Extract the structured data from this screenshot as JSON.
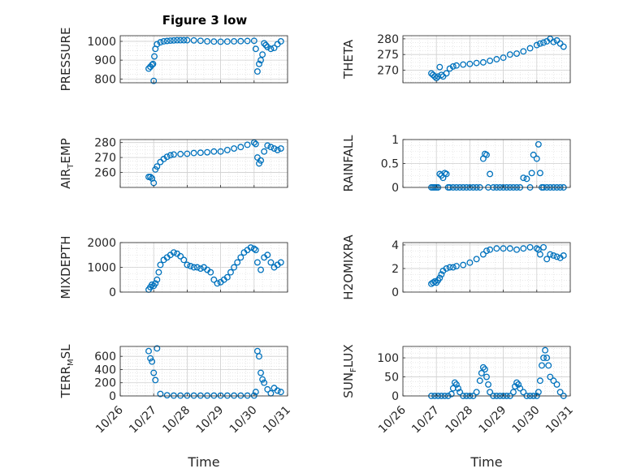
{
  "figure": {
    "title": "Figure 3 low",
    "marker_color": "#0072BD",
    "x_tick_labels": [
      "10/26",
      "10/27",
      "10/28",
      "10/29",
      "10/30",
      "10/31"
    ],
    "x_label": "Time"
  },
  "chart_data": [
    {
      "type": "scatter",
      "ylabel": "PRESSURE",
      "ylim": [
        780,
        1030
      ],
      "yticks": [
        800,
        900,
        1000
      ],
      "x_range_days": [
        26,
        31
      ],
      "grid": true,
      "x": [
        26.85,
        26.9,
        26.95,
        26.98,
        27.0,
        27.02,
        27.05,
        27.1,
        27.2,
        27.3,
        27.4,
        27.5,
        27.6,
        27.7,
        27.8,
        27.9,
        28.0,
        28.2,
        28.4,
        28.6,
        28.8,
        29.0,
        29.2,
        29.4,
        29.6,
        29.8,
        30.0,
        30.05,
        30.1,
        30.15,
        30.2,
        30.25,
        30.3,
        30.35,
        30.4,
        30.5,
        30.6,
        30.7,
        30.8
      ],
      "y": [
        855,
        865,
        875,
        880,
        790,
        920,
        960,
        985,
        995,
        1000,
        1002,
        1004,
        1005,
        1006,
        1006,
        1006,
        1006,
        1005,
        1003,
        1000,
        999,
        998,
        999,
        1000,
        1001,
        1002,
        1003,
        960,
        840,
        880,
        900,
        930,
        990,
        980,
        970,
        960,
        965,
        985,
        1000
      ]
    },
    {
      "type": "scatter",
      "ylabel": "THETA",
      "ylim": [
        266,
        281
      ],
      "yticks": [
        270,
        275,
        280
      ],
      "x_range_days": [
        26,
        31
      ],
      "grid": true,
      "x": [
        26.85,
        26.9,
        26.95,
        27.0,
        27.05,
        27.1,
        27.15,
        27.2,
        27.3,
        27.4,
        27.5,
        27.6,
        27.8,
        28.0,
        28.2,
        28.4,
        28.6,
        28.8,
        29.0,
        29.2,
        29.4,
        29.6,
        29.8,
        30.0,
        30.1,
        30.2,
        30.3,
        30.4,
        30.5,
        30.6,
        30.7,
        30.8
      ],
      "y": [
        269,
        268.5,
        268,
        267.5,
        268,
        271,
        268.5,
        268,
        269,
        270.5,
        271.2,
        271.5,
        271.8,
        272,
        272.3,
        272.5,
        273,
        273.5,
        274,
        275,
        275.3,
        276,
        277,
        278,
        278.5,
        278.8,
        279.2,
        280,
        279,
        279.5,
        278.5,
        277.5
      ]
    },
    {
      "type": "scatter",
      "ylabel": "AIR_TEMP",
      "ylim": [
        250,
        282
      ],
      "yticks": [
        260,
        270,
        280
      ],
      "x_range_days": [
        26,
        31
      ],
      "grid": true,
      "x": [
        26.85,
        26.9,
        26.95,
        27.0,
        27.05,
        27.1,
        27.2,
        27.3,
        27.4,
        27.5,
        27.6,
        27.8,
        28.0,
        28.2,
        28.4,
        28.6,
        28.8,
        29.0,
        29.2,
        29.4,
        29.6,
        29.8,
        30.0,
        30.05,
        30.1,
        30.15,
        30.2,
        30.3,
        30.4,
        30.5,
        30.6,
        30.7,
        30.8
      ],
      "y": [
        257,
        257,
        256,
        253,
        262,
        264,
        267,
        269,
        270.5,
        271.5,
        272,
        272.3,
        272.5,
        273,
        273.2,
        273.5,
        274,
        274,
        275,
        276,
        277,
        278.5,
        280,
        279,
        270,
        266,
        268,
        274,
        278,
        277,
        276,
        275,
        276
      ]
    },
    {
      "type": "scatter",
      "ylabel": "RAINFALL",
      "ylim": [
        0,
        1
      ],
      "yticks": [
        0,
        0.5,
        1
      ],
      "x_range_days": [
        26,
        31
      ],
      "grid": true,
      "x": [
        26.85,
        26.9,
        26.95,
        27.0,
        27.05,
        27.1,
        27.15,
        27.2,
        27.25,
        27.3,
        27.35,
        27.4,
        27.5,
        27.6,
        27.7,
        27.8,
        27.9,
        28.0,
        28.1,
        28.2,
        28.3,
        28.4,
        28.45,
        28.5,
        28.55,
        28.6,
        28.7,
        28.8,
        28.9,
        29.0,
        29.1,
        29.2,
        29.3,
        29.4,
        29.5,
        29.6,
        29.7,
        29.8,
        29.85,
        29.9,
        30.0,
        30.05,
        30.1,
        30.15,
        30.2,
        30.3,
        30.4,
        30.5,
        30.6,
        30.7,
        30.8
      ],
      "y": [
        0,
        0,
        0,
        0,
        0,
        0.28,
        0.25,
        0.2,
        0.3,
        0.28,
        0,
        0,
        0,
        0,
        0,
        0,
        0,
        0,
        0,
        0,
        0,
        0.6,
        0.7,
        0.68,
        0,
        0.28,
        0,
        0,
        0,
        0,
        0,
        0,
        0,
        0,
        0,
        0.2,
        0.18,
        0,
        0.3,
        0.68,
        0.6,
        0.9,
        0.3,
        0,
        0,
        0,
        0,
        0,
        0,
        0,
        0
      ]
    },
    {
      "type": "scatter",
      "ylabel": "MIXDEPTH",
      "ylim": [
        0,
        2000
      ],
      "yticks": [
        0,
        1000,
        2000
      ],
      "x_range_days": [
        26,
        31
      ],
      "grid": true,
      "x": [
        26.85,
        26.9,
        26.95,
        27.0,
        27.05,
        27.1,
        27.15,
        27.2,
        27.3,
        27.4,
        27.5,
        27.6,
        27.7,
        27.8,
        27.9,
        28.0,
        28.1,
        28.2,
        28.3,
        28.4,
        28.5,
        28.6,
        28.7,
        28.8,
        28.9,
        29.0,
        29.1,
        29.2,
        29.3,
        29.4,
        29.5,
        29.6,
        29.7,
        29.8,
        29.9,
        30.0,
        30.05,
        30.1,
        30.2,
        30.3,
        30.4,
        30.5,
        30.6,
        30.7,
        30.8
      ],
      "y": [
        100,
        200,
        300,
        250,
        350,
        500,
        800,
        1100,
        1300,
        1400,
        1500,
        1600,
        1550,
        1450,
        1300,
        1100,
        1050,
        1000,
        1000,
        950,
        1000,
        900,
        800,
        500,
        350,
        400,
        500,
        600,
        800,
        1000,
        1200,
        1400,
        1600,
        1700,
        1800,
        1750,
        1700,
        1200,
        900,
        1400,
        1500,
        1200,
        1000,
        1100,
        1200
      ]
    },
    {
      "type": "scatter",
      "ylabel": "H2OMIXRA",
      "ylim": [
        0,
        4.2
      ],
      "yticks": [
        0,
        2,
        4
      ],
      "x_range_days": [
        26,
        31
      ],
      "grid": true,
      "x": [
        26.85,
        26.9,
        26.95,
        27.0,
        27.05,
        27.1,
        27.15,
        27.2,
        27.3,
        27.4,
        27.5,
        27.6,
        27.8,
        28.0,
        28.2,
        28.4,
        28.5,
        28.6,
        28.8,
        29.0,
        29.2,
        29.4,
        29.6,
        29.8,
        30.0,
        30.05,
        30.1,
        30.2,
        30.3,
        30.4,
        30.5,
        30.6,
        30.7,
        30.8
      ],
      "y": [
        0.7,
        0.8,
        0.9,
        0.8,
        1.0,
        1.2,
        1.5,
        1.8,
        2.0,
        2.1,
        2.1,
        2.2,
        2.3,
        2.5,
        2.8,
        3.2,
        3.5,
        3.6,
        3.7,
        3.7,
        3.7,
        3.6,
        3.7,
        3.8,
        3.7,
        3.6,
        3.2,
        3.8,
        2.8,
        3.2,
        3.1,
        3.0,
        2.9,
        3.1
      ]
    },
    {
      "type": "scatter",
      "ylabel": "TERR_MSL",
      "ylim": [
        0,
        750
      ],
      "yticks": [
        0,
        200,
        400,
        600
      ],
      "x_range_days": [
        26,
        31
      ],
      "grid": true,
      "x": [
        26.85,
        26.9,
        26.95,
        27.0,
        27.05,
        27.1,
        27.2,
        27.4,
        27.6,
        27.8,
        28.0,
        28.2,
        28.4,
        28.6,
        28.8,
        29.0,
        29.2,
        29.4,
        29.6,
        29.8,
        30.0,
        30.05,
        30.1,
        30.15,
        30.2,
        30.25,
        30.3,
        30.4,
        30.5,
        30.6,
        30.7,
        30.8
      ],
      "y": [
        680,
        570,
        520,
        350,
        240,
        720,
        30,
        10,
        5,
        5,
        5,
        5,
        5,
        5,
        5,
        5,
        5,
        5,
        5,
        5,
        5,
        60,
        680,
        600,
        350,
        250,
        200,
        100,
        40,
        120,
        80,
        60
      ]
    },
    {
      "type": "scatter",
      "ylabel": "SUN_FLUX",
      "ylim": [
        0,
        130
      ],
      "yticks": [
        0,
        50,
        100
      ],
      "x_range_days": [
        26,
        31
      ],
      "grid": true,
      "x": [
        26.85,
        26.95,
        27.05,
        27.15,
        27.25,
        27.35,
        27.45,
        27.5,
        27.55,
        27.6,
        27.65,
        27.7,
        27.8,
        27.9,
        28.0,
        28.1,
        28.2,
        28.3,
        28.35,
        28.4,
        28.45,
        28.5,
        28.55,
        28.6,
        28.7,
        28.8,
        28.9,
        29.0,
        29.1,
        29.2,
        29.3,
        29.35,
        29.4,
        29.45,
        29.5,
        29.6,
        29.7,
        29.8,
        29.9,
        30.0,
        30.05,
        30.1,
        30.15,
        30.2,
        30.25,
        30.3,
        30.35,
        30.4,
        30.5,
        30.6,
        30.7,
        30.8
      ],
      "y": [
        0,
        0,
        0,
        0,
        0,
        0,
        5,
        20,
        35,
        30,
        20,
        10,
        0,
        0,
        0,
        0,
        10,
        40,
        60,
        75,
        70,
        50,
        30,
        10,
        0,
        0,
        0,
        0,
        0,
        0,
        10,
        25,
        35,
        30,
        20,
        10,
        0,
        0,
        0,
        0,
        10,
        40,
        80,
        100,
        120,
        100,
        80,
        50,
        40,
        30,
        10,
        0
      ]
    }
  ]
}
